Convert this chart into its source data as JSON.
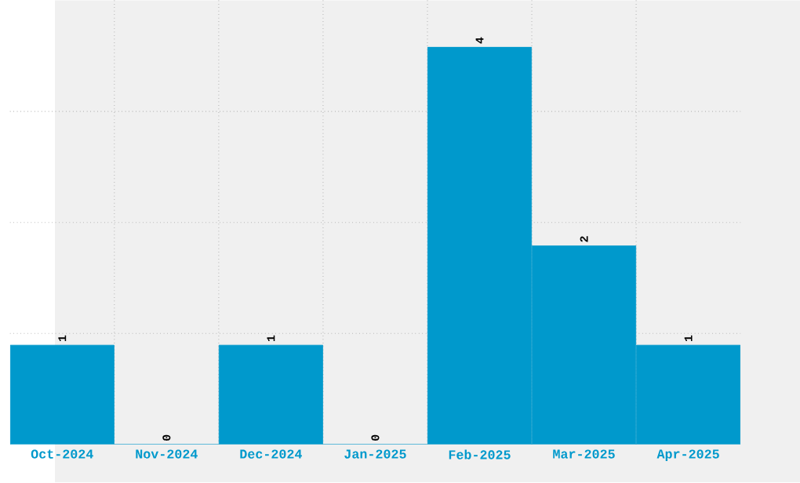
{
  "chart_data": {
    "type": "bar",
    "categories": [
      "Oct-2024",
      "Nov-2024",
      "Dec-2024",
      "Jan-2025",
      "Feb-2025",
      "Mar-2025",
      "Apr-2025"
    ],
    "values": [
      1,
      0,
      1,
      0,
      4,
      2,
      1
    ],
    "color": "#0099cc",
    "data_labels": true,
    "grid": true,
    "ylim": [
      0,
      4.47
    ],
    "yticks": [
      {
        "value": 1.1175,
        "label": null
      },
      {
        "value": 2.235,
        "label": null
      },
      {
        "value": 3.3525,
        "label": null
      }
    ],
    "tick_labels": "x"
  }
}
